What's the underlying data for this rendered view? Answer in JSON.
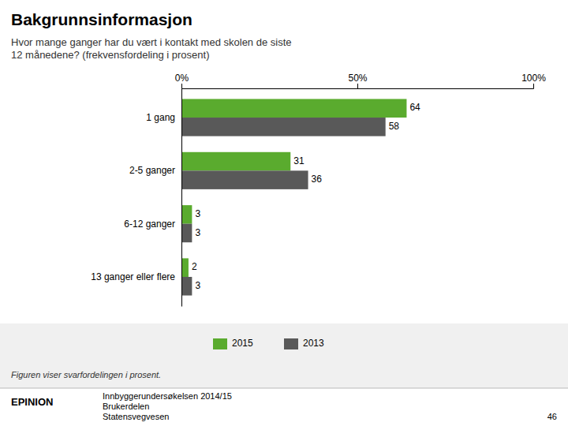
{
  "chart_data": {
    "type": "bar",
    "orientation": "horizontal",
    "title": "Bakgrunnsinformasjon",
    "subtitle": "Hvor mange ganger har du vært i kontakt med skolen de siste\n12 månedene? (frekvensfordeling i prosent)",
    "categories": [
      "1 gang",
      "2-5 ganger",
      "6-12 ganger",
      "13 ganger eller flere"
    ],
    "series": [
      {
        "name": "2015",
        "color": "#5aab2e",
        "values": [
          64,
          31,
          3,
          2
        ]
      },
      {
        "name": "2013",
        "color": "#595959",
        "values": [
          58,
          36,
          3,
          3
        ]
      }
    ],
    "xlim": [
      0,
      100
    ],
    "xticks": [
      {
        "value": 0,
        "label": "0%"
      },
      {
        "value": 50,
        "label": "50%"
      },
      {
        "value": 100,
        "label": "100%"
      }
    ],
    "grid": false,
    "legend": "bottom",
    "data_labels": true,
    "annotations": [
      "Figuren viser svarfordelingen i prosent.",
      "EPINION",
      "Innbyggerundersøkelsen 2014/15",
      "Brukerdelen",
      "Statensvegvesen",
      "46"
    ]
  }
}
